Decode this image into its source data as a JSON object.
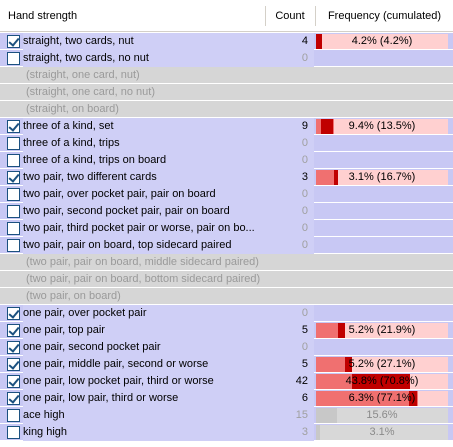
{
  "header": {
    "hand_strength": "Hand strength",
    "count": "Count",
    "frequency": "Frequency (cumulated)"
  },
  "rows": [
    {
      "label": "straight, two cards, nut",
      "checked": true,
      "state": "active",
      "count": "4",
      "freq": "4.2% (4.2%)",
      "cur_pct": 4.2,
      "cum_pct": 4.2,
      "style": "red"
    },
    {
      "label": "straight, two cards, no nut",
      "checked": false,
      "state": "active",
      "count": "0",
      "freq": "",
      "style": "none"
    },
    {
      "label": "(straight, one card, nut)",
      "state": "inactive",
      "freq": "",
      "style": "none"
    },
    {
      "label": "(straight, one card, no nut)",
      "state": "inactive",
      "freq": "",
      "style": "none"
    },
    {
      "label": "(straight, on board)",
      "state": "inactive",
      "freq": "",
      "style": "none"
    },
    {
      "label": "three of a kind, set",
      "checked": true,
      "state": "active",
      "count": "9",
      "freq": "9.4% (13.5%)",
      "cur_pct": 9.4,
      "cum_pct": 13.5,
      "style": "red"
    },
    {
      "label": "three of a kind, trips",
      "checked": false,
      "state": "active",
      "count": "0",
      "freq": "",
      "style": "none"
    },
    {
      "label": "three of a kind, trips on board",
      "checked": false,
      "state": "active",
      "count": "0",
      "freq": "",
      "style": "none"
    },
    {
      "label": "two pair, two different cards",
      "checked": true,
      "state": "active",
      "count": "3",
      "freq": "3.1% (16.7%)",
      "cur_pct": 3.1,
      "cum_pct": 16.7,
      "style": "red"
    },
    {
      "label": "two pair, over pocket pair, pair on board",
      "checked": false,
      "state": "active",
      "count": "0",
      "freq": "",
      "style": "none"
    },
    {
      "label": "two pair, second pocket pair, pair on board",
      "checked": false,
      "state": "active",
      "count": "0",
      "freq": "",
      "style": "none"
    },
    {
      "label": "two pair, third pocket pair or worse, pair on bo...",
      "checked": false,
      "state": "active",
      "count": "0",
      "freq": "",
      "style": "none"
    },
    {
      "label": "two pair, pair on board, top sidecard paired",
      "checked": false,
      "state": "active",
      "count": "0",
      "freq": "",
      "style": "none"
    },
    {
      "label": "(two pair, pair on board, middle sidecard paired)",
      "state": "inactive",
      "freq": "",
      "style": "none"
    },
    {
      "label": "(two pair, pair on board, bottom sidecard paired)",
      "state": "inactive",
      "freq": "",
      "style": "none"
    },
    {
      "label": "(two pair, on board)",
      "state": "inactive",
      "freq": "",
      "style": "none"
    },
    {
      "label": "one pair, over pocket pair",
      "checked": true,
      "state": "active",
      "count": "0",
      "freq": "",
      "style": "none"
    },
    {
      "label": "one pair, top pair",
      "checked": true,
      "state": "active",
      "count": "5",
      "freq": "5.2% (21.9%)",
      "cur_pct": 5.2,
      "cum_pct": 21.9,
      "style": "red"
    },
    {
      "label": "one pair, second pocket pair",
      "checked": true,
      "state": "active",
      "count": "0",
      "freq": "",
      "style": "none"
    },
    {
      "label": "one pair, middle pair, second or worse",
      "checked": true,
      "state": "active",
      "count": "5",
      "freq": "5.2% (27.1%)",
      "cur_pct": 5.2,
      "cum_pct": 27.1,
      "style": "red"
    },
    {
      "label": "one pair, low pocket pair, third or worse",
      "checked": true,
      "state": "active",
      "count": "42",
      "freq": "43.8% (70.8%)",
      "cur_pct": 43.8,
      "cum_pct": 70.8,
      "style": "red"
    },
    {
      "label": "one pair, low pair, third or worse",
      "checked": true,
      "state": "active",
      "count": "6",
      "freq": "6.3% (77.1%)",
      "cur_pct": 6.3,
      "cum_pct": 77.1,
      "style": "red"
    },
    {
      "label": "ace high",
      "checked": false,
      "state": "active",
      "count": "15",
      "freq": "15.6%",
      "cur_pct": 15.6,
      "cum_pct": 15.6,
      "style": "gray"
    },
    {
      "label": "king high",
      "checked": false,
      "state": "active",
      "count": "3",
      "freq": "3.1%",
      "cur_pct": 3.1,
      "cum_pct": 3.1,
      "style": "gray"
    }
  ],
  "colors": {
    "active_row": "#c8c8f4",
    "inactive_row": "#d6d6d6",
    "freq_background": "#ffd0d0",
    "freq_cumulative": "#f07070",
    "freq_current": "#c00000",
    "checkbox_border": "#1c5180"
  }
}
